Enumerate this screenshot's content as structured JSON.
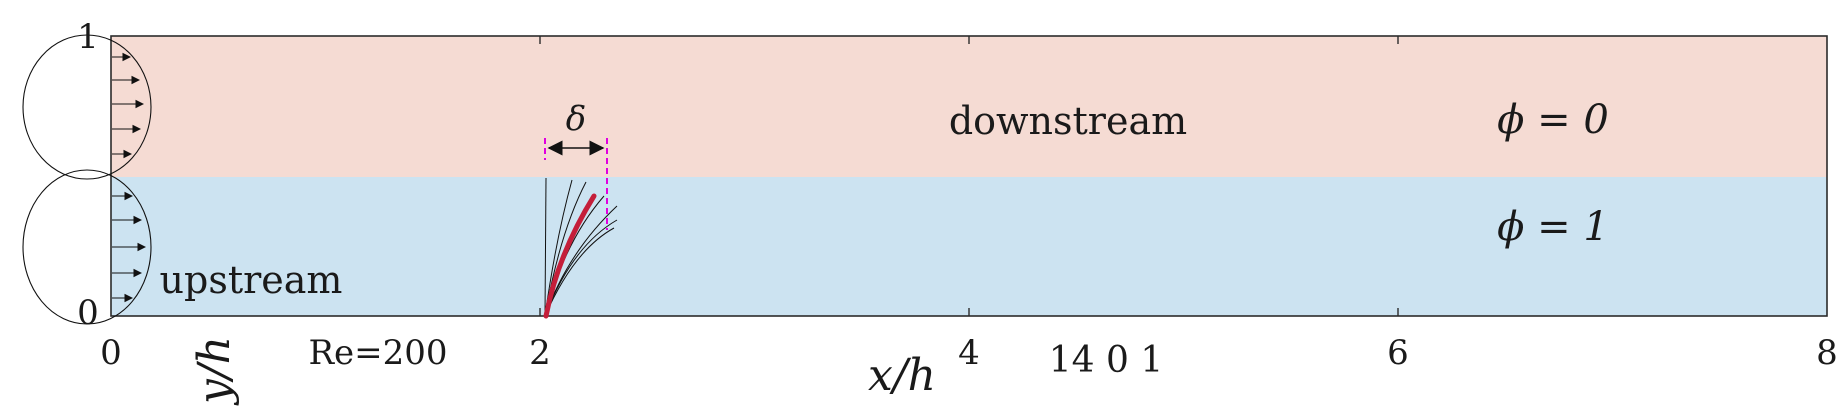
{
  "domain_axes": {
    "x_ticks": [
      "0",
      "2",
      "4",
      "6",
      "8"
    ],
    "y_ticks": [
      "0",
      "1"
    ],
    "xlabel": "x/h",
    "ylabel": "y/h"
  },
  "regions": {
    "upper": {
      "name": "downstream",
      "phi_label": "ϕ = 0",
      "color": "#f5dbd3"
    },
    "lower": {
      "name": "upstream",
      "phi_label": "ϕ = 1",
      "color": "#cce3f1"
    }
  },
  "annotations": {
    "reynolds": "Re=200",
    "delta": "δ",
    "stray_numbers": "14 0 1"
  },
  "colors": {
    "filament": "#c41e3a",
    "delta_marker": "#e000e0",
    "frame": "#2b2b2b"
  }
}
